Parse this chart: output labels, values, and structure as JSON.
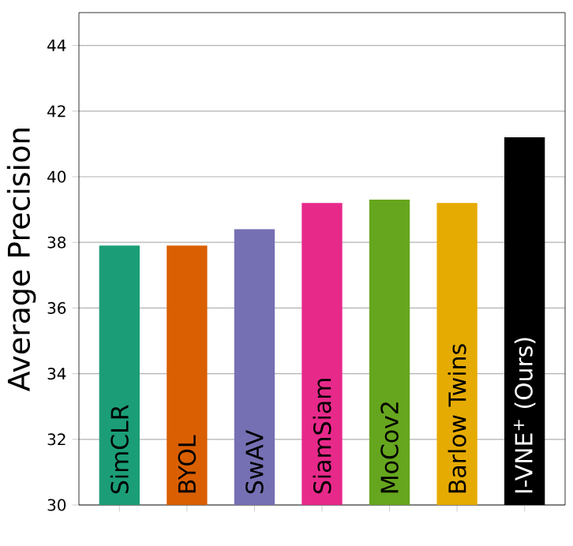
{
  "chart_data": {
    "type": "bar",
    "ylabel": "Average Precision",
    "categories": [
      "SimCLR",
      "BYOL",
      "SwAV",
      "SiamSiam",
      "MoCov2",
      "Barlow Twins",
      "I-VNE$^{+}$ (Ours)"
    ],
    "values": [
      37.9,
      37.9,
      38.4,
      39.2,
      39.3,
      39.2,
      41.2
    ],
    "colors": [
      "#1b9e77",
      "#d95f02",
      "#7570b3",
      "#e7298a",
      "#66a61e",
      "#e6ab02",
      "#000000"
    ],
    "ylim": [
      30,
      45
    ],
    "yticks": [
      30,
      32,
      34,
      36,
      38,
      40,
      42,
      44
    ],
    "grid": "y"
  }
}
